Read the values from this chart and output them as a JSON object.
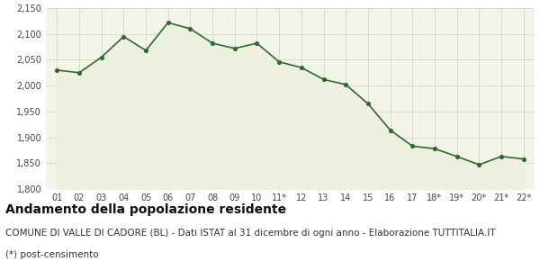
{
  "x_labels": [
    "01",
    "02",
    "03",
    "04",
    "05",
    "06",
    "07",
    "08",
    "09",
    "10",
    "11*",
    "12",
    "13",
    "14",
    "15",
    "16",
    "17",
    "18*",
    "19*",
    "20*",
    "21*",
    "22*"
  ],
  "y_values": [
    2030,
    2025,
    2055,
    2095,
    2068,
    2122,
    2110,
    2082,
    2072,
    2082,
    2046,
    2035,
    2012,
    2002,
    1965,
    1914,
    1883,
    1878,
    1863,
    1847,
    1863,
    1858
  ],
  "ylim": [
    1800,
    2150
  ],
  "yticks": [
    1800,
    1850,
    1900,
    1950,
    2000,
    2050,
    2100,
    2150
  ],
  "line_color": "#2e6b2e",
  "fill_color": "#edf0df",
  "marker_color": "#2e6b2e",
  "plot_bg_color": "#f2f4e8",
  "fig_bg_color": "#ffffff",
  "grid_color": "#d0d0c8",
  "title1": "Andamento della popolazione residente",
  "title2": "COMUNE DI VALLE DI CADORE (BL) - Dati ISTAT al 31 dicembre di ogni anno - Elaborazione TUTTITALIA.IT",
  "title3": "(*) post-censimento",
  "title1_fontsize": 10,
  "title2_fontsize": 7.5,
  "title3_fontsize": 7.5
}
